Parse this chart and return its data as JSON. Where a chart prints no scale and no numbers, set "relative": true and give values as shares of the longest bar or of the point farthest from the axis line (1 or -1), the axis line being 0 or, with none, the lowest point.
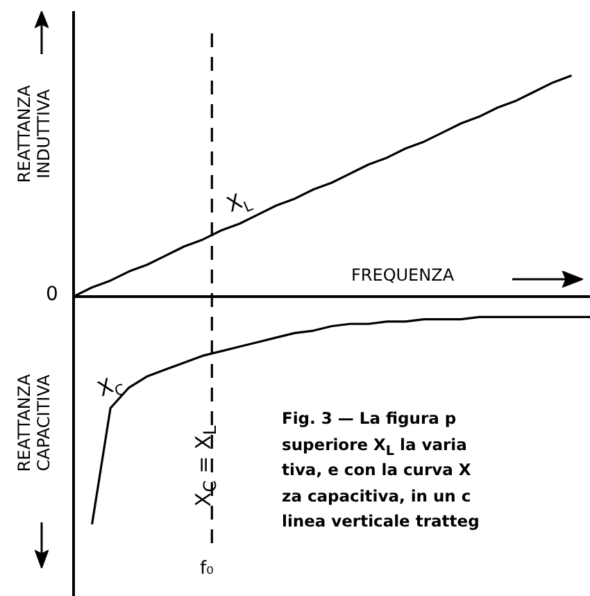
{
  "chart_data": {
    "type": "line",
    "relative": true,
    "xlabel": "FREQUENZA",
    "ylabel": "REATTANZA INDUTTIVA",
    "legend": false,
    "marker": "none",
    "line_style": "solid",
    "categories": [
      null,
      null,
      null,
      null,
      null,
      null,
      null,
      null,
      null,
      null,
      null,
      null,
      null,
      null,
      null,
      null,
      null,
      null,
      null,
      null,
      null,
      null,
      null,
      null,
      null,
      null,
      null,
      null,
      null
    ],
    "series": [
      {
        "name": "X$_{L}$",
        "color": "#000000",
        "values": [
          0,
          0.04,
          0.07,
          0.11,
          0.14,
          0.18,
          0.22,
          0.25,
          0.29,
          0.32,
          0.36,
          0.4,
          0.43,
          0.47,
          0.5,
          0.54,
          0.58,
          0.61,
          0.65,
          0.68,
          0.72,
          0.76,
          0.79,
          0.83,
          0.86,
          0.9,
          0.94,
          0.97,
          null
        ]
      },
      {
        "name": "X$_{C}$",
        "color": "#000000",
        "values": [
          null,
          -1,
          -0.49,
          -0.4,
          -0.35,
          -0.32,
          -0.29,
          -0.26,
          -0.24,
          -0.22,
          -0.2,
          -0.18,
          -0.16,
          -0.15,
          -0.13,
          -0.12,
          -0.12,
          -0.11,
          -0.11,
          -0.1,
          -0.1,
          -0.1,
          -0.09,
          -0.09,
          -0.09,
          -0.09,
          -0.09,
          -0.09,
          -0.09
        ]
      }
    ],
    "annotations": [
      "REATTANZA CAPACITIVA",
      "0",
      "f₀",
      "X$_{C}$ = X$_{L}$",
      "Fig. 3 — La figura p",
      "superiore X$_{L}$ la varia",
      "tiva, e con la curva X",
      "za capacitiva, in un c",
      "linea verticale tratteg"
    ]
  }
}
